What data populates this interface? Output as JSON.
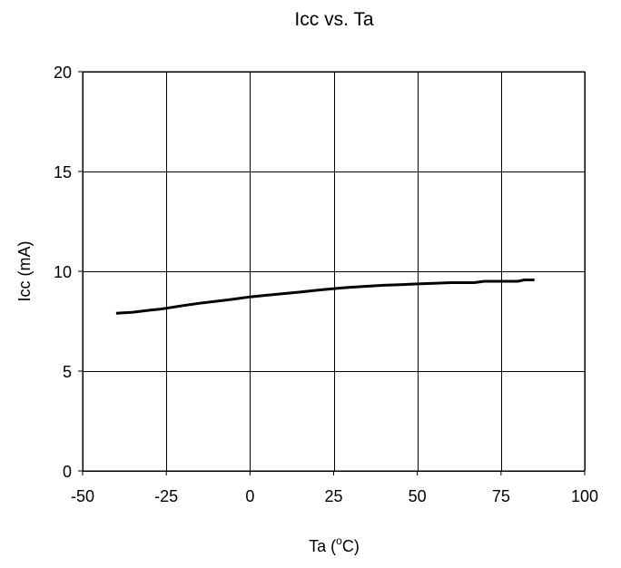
{
  "chart_data": {
    "type": "line",
    "title": "Icc vs. Ta",
    "xlabel": "Ta (",
    "xlabel_sup": "o",
    "xlabel_suffix": "C)",
    "ylabel": "Icc (mA)",
    "xlim": [
      -50,
      100
    ],
    "ylim": [
      0,
      20
    ],
    "xticks": [
      -50,
      -25,
      0,
      25,
      50,
      75,
      100
    ],
    "yticks": [
      0,
      5,
      10,
      15,
      20
    ],
    "grid": true,
    "series": [
      {
        "color": "#000000",
        "x": [
          -40,
          -35,
          -30,
          -27,
          -25,
          -20,
          -15,
          -10,
          -5,
          0,
          5,
          10,
          15,
          20,
          25,
          30,
          35,
          40,
          45,
          50,
          55,
          60,
          65,
          67,
          70,
          75,
          80,
          82,
          85
        ],
        "y": [
          7.9,
          7.95,
          8.05,
          8.1,
          8.15,
          8.28,
          8.4,
          8.5,
          8.6,
          8.72,
          8.8,
          8.88,
          8.96,
          9.05,
          9.13,
          9.2,
          9.25,
          9.3,
          9.33,
          9.37,
          9.4,
          9.43,
          9.43,
          9.43,
          9.5,
          9.5,
          9.5,
          9.57,
          9.57
        ]
      }
    ]
  }
}
